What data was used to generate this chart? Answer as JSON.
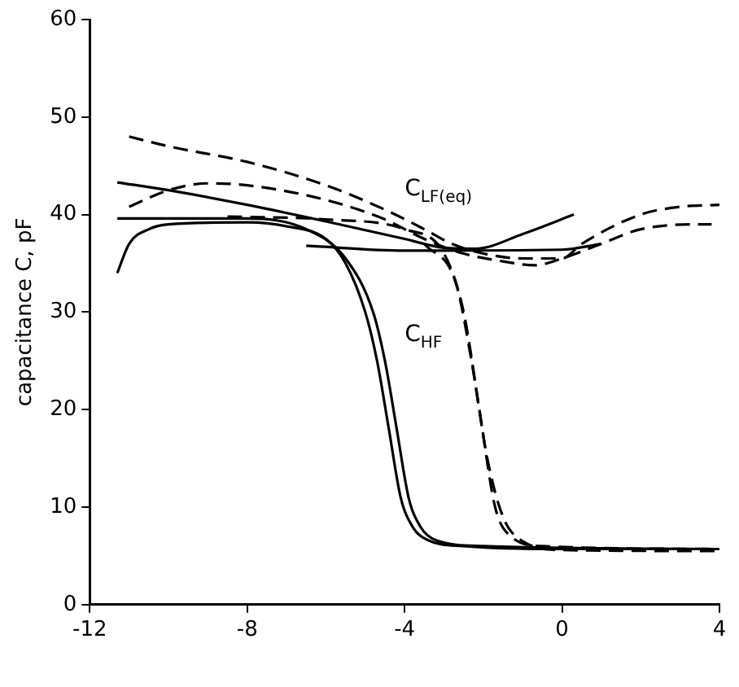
{
  "chart_data": {
    "type": "line",
    "ylabel": "capacitance C, pF",
    "xlim": [
      -12,
      4
    ],
    "xticks": [
      -12,
      -8,
      -4,
      0,
      4
    ],
    "ylim": [
      0,
      60
    ],
    "yticks": [
      0,
      10,
      20,
      30,
      40,
      50,
      60
    ],
    "grid": false,
    "legend": false,
    "marker": "none",
    "series": [
      {
        "color": "#000000",
        "line_style": "solid",
        "x": [
          -11.3,
          -11,
          -10.5,
          -10,
          -8,
          -7,
          -6,
          -5.5,
          -5,
          -4.7,
          -4.4,
          -4.1,
          -3.8,
          -3.4,
          -2.5,
          0,
          4
        ],
        "values": [
          34,
          37,
          38.5,
          39,
          39.2,
          38.8,
          37.5,
          35,
          30,
          25,
          18,
          11,
          8,
          6.6,
          6,
          5.7,
          5.7
        ]
      },
      {
        "color": "#000000",
        "line_style": "solid",
        "x": [
          -11.3,
          -8,
          -6.5,
          -5.5,
          -4.8,
          -4.5,
          -4.2,
          -3.9,
          -3.6,
          -3.2,
          -2,
          4
        ],
        "values": [
          39.6,
          39.6,
          38.5,
          35.5,
          30,
          25,
          18,
          11,
          8,
          6.6,
          6,
          5.7
        ]
      },
      {
        "color": "#000000",
        "line_style": "solid",
        "x": [
          -11.3,
          -10,
          -8,
          -6,
          -4,
          -3,
          -2.2,
          -1,
          0.3
        ],
        "values": [
          43.3,
          42.5,
          41,
          39.3,
          37.5,
          36.6,
          36.5,
          38,
          40
        ]
      },
      {
        "color": "#000000",
        "line_style": "solid",
        "x": [
          -6.5,
          -4,
          0,
          1
        ],
        "values": [
          36.8,
          36.3,
          36.4,
          37
        ]
      },
      {
        "color": "#000000",
        "line_style": "dashed",
        "x": [
          -11,
          -10,
          -8,
          -6,
          -4.5,
          -3.5,
          -2.8,
          -2,
          -1,
          0,
          0.5,
          2,
          3,
          4
        ],
        "values": [
          48,
          47,
          45.4,
          43,
          40.5,
          38.5,
          37,
          36,
          35.5,
          35.5,
          37,
          40,
          40.8,
          41
        ]
      },
      {
        "color": "#000000",
        "line_style": "dashed",
        "x": [
          -11,
          -10,
          -9,
          -8,
          -6,
          -4.5,
          -3.5,
          -2.5,
          -1.5,
          -0.7,
          0,
          1,
          2,
          3.5,
          3.8
        ],
        "values": [
          40.8,
          42.5,
          43.2,
          43,
          41.5,
          39.5,
          37.5,
          36,
          35.2,
          34.8,
          35.5,
          37,
          38.5,
          39,
          39
        ]
      },
      {
        "color": "#000000",
        "line_style": "dashed",
        "x": [
          -8.5,
          -6,
          -4,
          -3,
          -2.5,
          -2.1,
          -1.7,
          -1.3,
          -0.5,
          4
        ],
        "values": [
          39.8,
          39.5,
          38.5,
          36,
          30,
          20,
          10,
          7,
          6,
          5.7
        ]
      },
      {
        "color": "#000000",
        "line_style": "dashed",
        "x": [
          -3.5,
          -2.7,
          -2.3,
          -1.9,
          -1.5,
          -1,
          0,
          4
        ],
        "values": [
          37,
          33,
          25,
          15,
          9,
          6.5,
          5.6,
          5.5
        ]
      }
    ],
    "annotations": [
      "C$_{LF(eq)}$",
      "C$_{HF}$"
    ]
  }
}
